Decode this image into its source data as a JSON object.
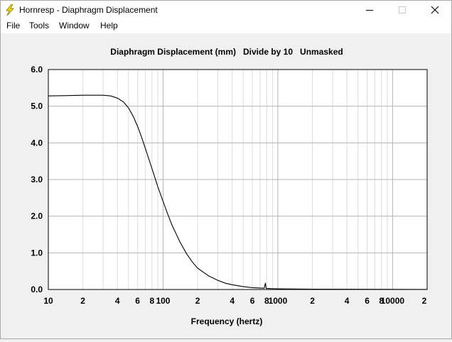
{
  "window": {
    "title": "Hornresp - Diaphragm Displacement",
    "minimize_glyph": "—",
    "maximize_glyph": "☐",
    "close_glyph": "✕"
  },
  "menu": [
    "File",
    "Tools",
    "Window",
    "Help"
  ],
  "colors": {
    "plot_background": "#ffffff",
    "grid_major": "#b4b4b4",
    "grid_minor": "#dcdcdc",
    "curve": "#000000",
    "icon_yellow": "#f5d800"
  },
  "chart_data": {
    "type": "line",
    "title": "Diaphragm Displacement (mm)   Divide by 10   Unmasked",
    "xlabel": "Frequency (hertz)",
    "ylabel": "",
    "x_scale": "log",
    "xlim": [
      10,
      20000
    ],
    "ylim": [
      0,
      6
    ],
    "grid": true,
    "y_ticks": [
      {
        "value": 0,
        "label": "0.0"
      },
      {
        "value": 1,
        "label": "1.0"
      },
      {
        "value": 2,
        "label": "2.0"
      },
      {
        "value": 3,
        "label": "3.0"
      },
      {
        "value": 4,
        "label": "4.0"
      },
      {
        "value": 5,
        "label": "5.0"
      },
      {
        "value": 6,
        "label": "6.0"
      }
    ],
    "x_ticks": [
      {
        "value": 10,
        "label": "10"
      },
      {
        "value": 20,
        "label": "2"
      },
      {
        "value": 40,
        "label": "4"
      },
      {
        "value": 60,
        "label": "6"
      },
      {
        "value": 80,
        "label": "8"
      },
      {
        "value": 100,
        "label": "100"
      },
      {
        "value": 200,
        "label": "2"
      },
      {
        "value": 400,
        "label": "4"
      },
      {
        "value": 600,
        "label": "6"
      },
      {
        "value": 800,
        "label": "8"
      },
      {
        "value": 1000,
        "label": "1000"
      },
      {
        "value": 2000,
        "label": "2"
      },
      {
        "value": 4000,
        "label": "4"
      },
      {
        "value": 6000,
        "label": "6"
      },
      {
        "value": 8000,
        "label": "8"
      },
      {
        "value": 10000,
        "label": "10000"
      },
      {
        "value": 20000,
        "label": "2"
      }
    ],
    "series": [
      {
        "points": [
          [
            10,
            5.28
          ],
          [
            15,
            5.29
          ],
          [
            20,
            5.3
          ],
          [
            30,
            5.3
          ],
          [
            35,
            5.28
          ],
          [
            40,
            5.22
          ],
          [
            45,
            5.12
          ],
          [
            50,
            4.95
          ],
          [
            55,
            4.72
          ],
          [
            60,
            4.45
          ],
          [
            65,
            4.15
          ],
          [
            70,
            3.85
          ],
          [
            80,
            3.3
          ],
          [
            90,
            2.8
          ],
          [
            100,
            2.4
          ],
          [
            110,
            2.05
          ],
          [
            120,
            1.75
          ],
          [
            140,
            1.3
          ],
          [
            160,
            0.98
          ],
          [
            180,
            0.75
          ],
          [
            200,
            0.58
          ],
          [
            250,
            0.37
          ],
          [
            300,
            0.25
          ],
          [
            350,
            0.17
          ],
          [
            400,
            0.13
          ],
          [
            500,
            0.08
          ],
          [
            600,
            0.05
          ],
          [
            700,
            0.04
          ],
          [
            760,
            0.035
          ],
          [
            780,
            0.18
          ],
          [
            790,
            0.03
          ],
          [
            850,
            0.025
          ],
          [
            1000,
            0.02
          ],
          [
            2000,
            0.01
          ],
          [
            5000,
            0.005
          ],
          [
            10000,
            0.003
          ],
          [
            20000,
            0.002
          ]
        ]
      }
    ]
  }
}
